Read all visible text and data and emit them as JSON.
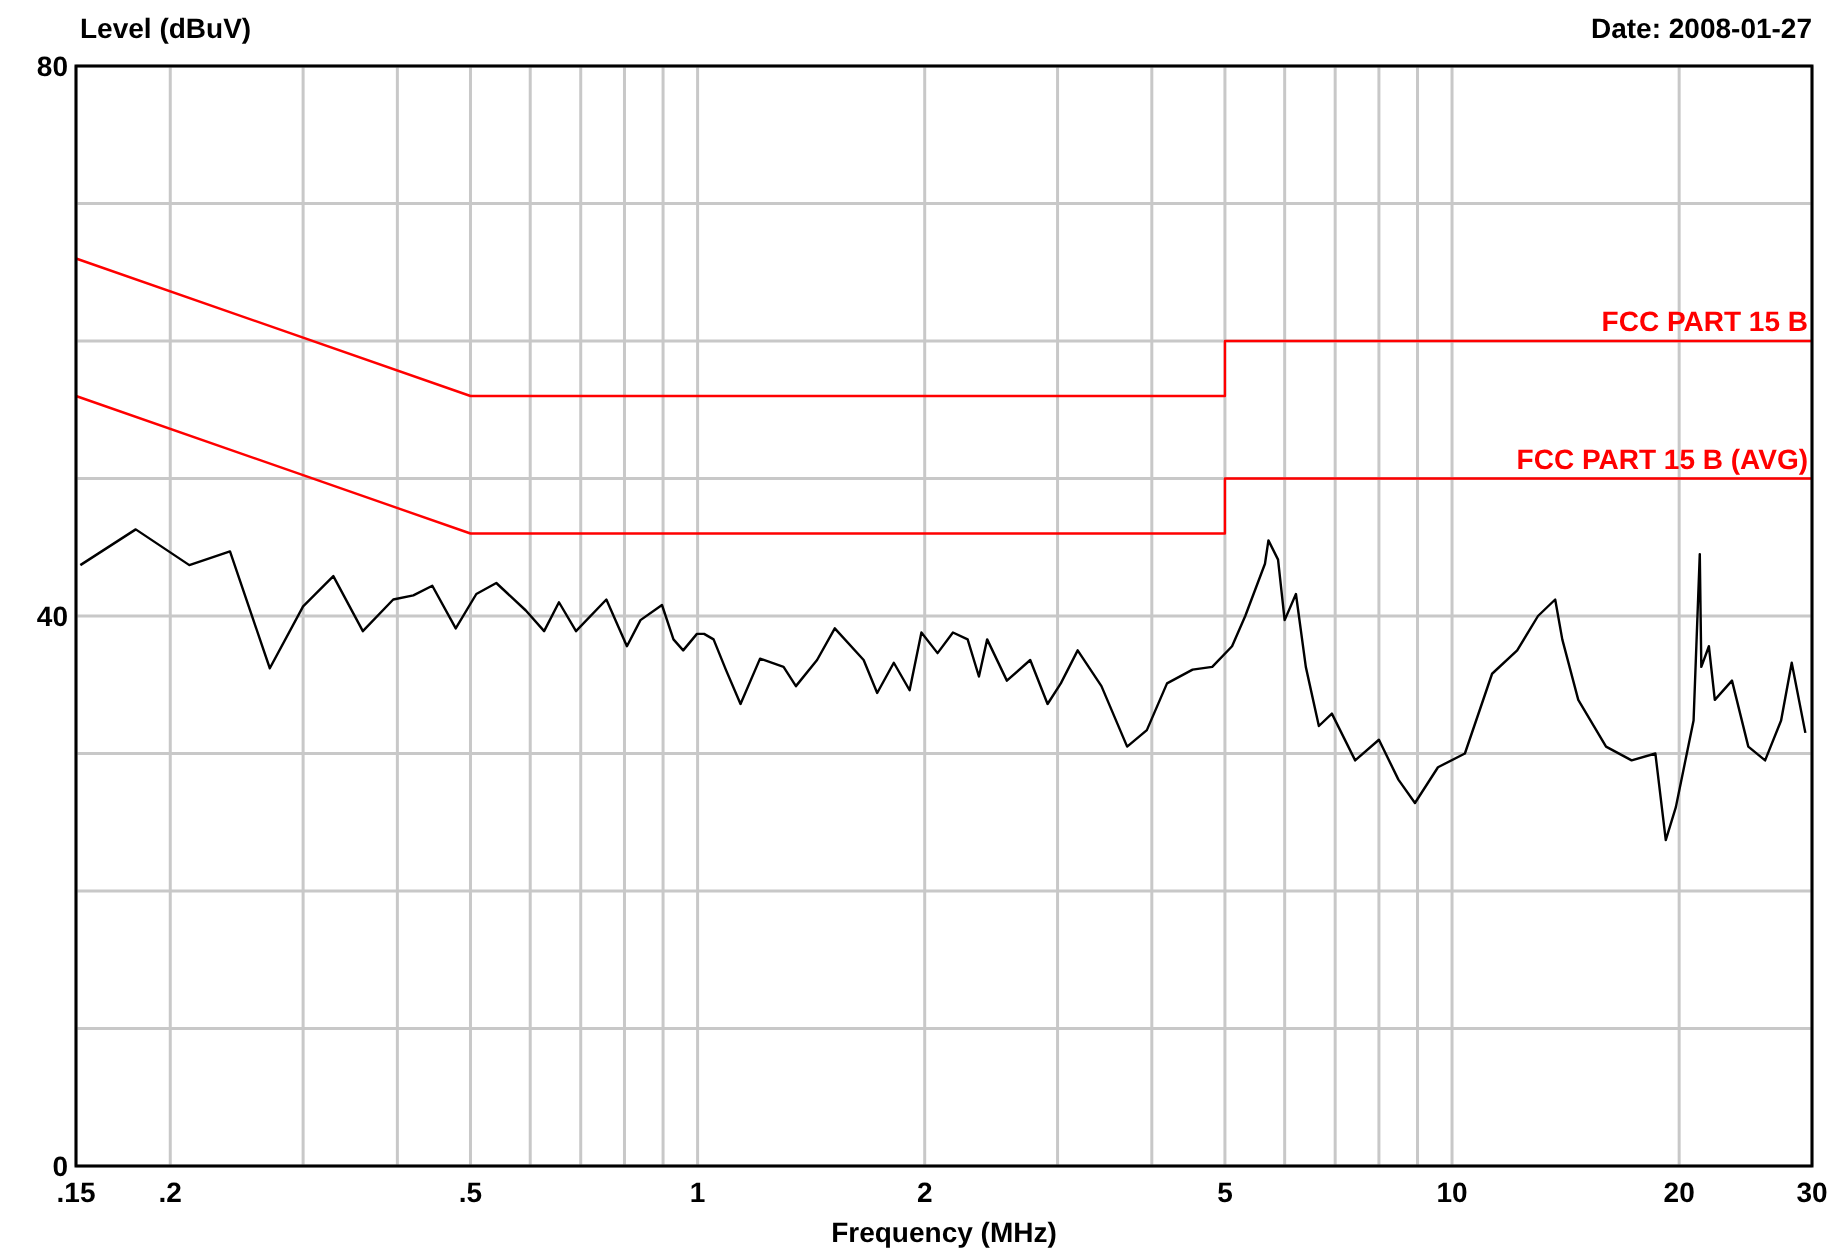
{
  "chart_data": {
    "type": "line",
    "ylabel": "Level (dBuV)",
    "xlabel": "Frequency (MHz)",
    "annotations": [
      "Date: 2008-01-27"
    ],
    "log": "x",
    "grid": true,
    "legend": false,
    "xlim": [
      0.15,
      30
    ],
    "ylim": [
      0,
      80
    ],
    "xticks": [
      {
        "value": 0.15,
        "label": ".15"
      },
      {
        "value": 0.2,
        "label": ".2"
      },
      {
        "value": 0.3,
        "label": null
      },
      {
        "value": 0.4,
        "label": null
      },
      {
        "value": 0.5,
        "label": ".5"
      },
      {
        "value": 0.6,
        "label": null
      },
      {
        "value": 0.7,
        "label": null
      },
      {
        "value": 0.8,
        "label": null
      },
      {
        "value": 0.9,
        "label": null
      },
      1,
      2,
      {
        "value": 3,
        "label": null
      },
      {
        "value": 4,
        "label": null
      },
      5,
      {
        "value": 6,
        "label": null
      },
      {
        "value": 7,
        "label": null
      },
      {
        "value": 8,
        "label": null
      },
      {
        "value": 9,
        "label": null
      },
      10,
      20,
      30
    ],
    "yticks": [
      0,
      {
        "value": 10,
        "label": null
      },
      {
        "value": 20,
        "label": null
      },
      {
        "value": 30,
        "label": null
      },
      40,
      {
        "value": 50,
        "label": null
      },
      {
        "value": 60,
        "label": null
      },
      {
        "value": 70,
        "label": null
      },
      80
    ],
    "series": [
      {
        "name": "FCC PART 15 B",
        "color": "#ff0000",
        "x": [
          0.15,
          0.5,
          5,
          5,
          30
        ],
        "values": [
          66,
          56,
          56,
          60,
          60
        ]
      },
      {
        "name": "FCC PART 15 B (AVG)",
        "color": "#ff0000",
        "x": [
          0.15,
          0.5,
          5,
          5,
          30
        ],
        "values": [
          56,
          46,
          46,
          50,
          50
        ]
      },
      {
        "color": "#000000",
        "x": [
          0.152,
          0.18,
          0.212,
          0.24,
          0.271,
          0.3,
          0.329,
          0.36,
          0.395,
          0.42,
          0.445,
          0.478,
          0.509,
          0.541,
          0.592,
          0.626,
          0.655,
          0.69,
          0.757,
          0.806,
          0.84,
          0.897,
          0.929,
          0.957,
          0.998,
          1.02,
          1.05,
          1.09,
          1.14,
          1.21,
          1.3,
          1.35,
          1.44,
          1.52,
          1.66,
          1.73,
          1.82,
          1.91,
          1.98,
          2.08,
          2.18,
          2.28,
          2.36,
          2.42,
          2.57,
          2.76,
          2.91,
          3.03,
          3.19,
          3.43,
          3.71,
          3.94,
          4.19,
          4.53,
          4.81,
          5.11,
          5.32,
          5.65,
          5.71,
          5.88,
          6.0,
          6.21,
          6.4,
          6.66,
          6.93,
          7.44,
          8.0,
          8.49,
          8.93,
          9.58,
          10.4,
          11.3,
          12.2,
          13.0,
          13.7,
          14.0,
          14.7,
          16.0,
          17.3,
          18.6,
          19.2,
          19.8,
          20.9,
          21.3,
          21.4,
          21.9,
          22.3,
          23.5,
          24.7,
          26.0,
          27.3,
          28.2,
          29.4
        ],
        "values": [
          43.7,
          46.3,
          43.7,
          44.7,
          36.2,
          40.7,
          42.9,
          38.9,
          41.2,
          41.5,
          42.2,
          39.1,
          41.6,
          42.4,
          40.4,
          38.9,
          41.0,
          38.9,
          41.2,
          37.8,
          39.7,
          40.8,
          38.3,
          37.5,
          38.7,
          38.7,
          38.3,
          36.1,
          33.6,
          36.9,
          36.3,
          34.9,
          36.8,
          39.1,
          36.8,
          34.4,
          36.6,
          34.6,
          38.8,
          37.3,
          38.8,
          38.3,
          35.6,
          38.3,
          35.3,
          36.8,
          33.6,
          35.1,
          37.5,
          34.9,
          30.5,
          31.7,
          35.1,
          36.1,
          36.3,
          37.8,
          40.0,
          43.8,
          45.5,
          44.1,
          39.7,
          41.6,
          36.3,
          32.0,
          32.9,
          29.5,
          31.0,
          28.1,
          26.4,
          29.0,
          30.0,
          35.8,
          37.5,
          40.0,
          41.2,
          38.3,
          33.9,
          30.5,
          29.5,
          30.0,
          23.7,
          26.1,
          32.4,
          44.5,
          36.3,
          37.8,
          33.9,
          35.3,
          30.5,
          29.5,
          32.4,
          36.6,
          31.5
        ]
      }
    ]
  }
}
